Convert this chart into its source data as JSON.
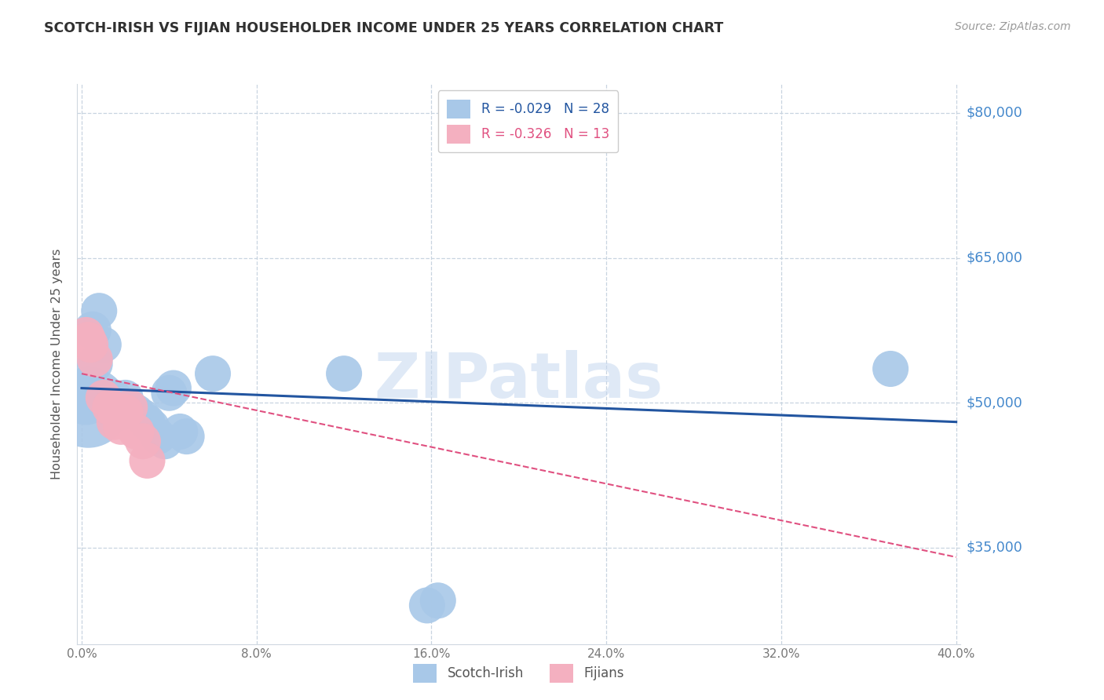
{
  "title": "SCOTCH-IRISH VS FIJIAN HOUSEHOLDER INCOME UNDER 25 YEARS CORRELATION CHART",
  "source": "Source: ZipAtlas.com",
  "ylabel": "Householder Income Under 25 years",
  "watermark": "ZIPatlas",
  "legend_bottom": [
    "Scotch-Irish",
    "Fijians"
  ],
  "scotch_irish": {
    "label": "Scotch-Irish",
    "R": -0.029,
    "N": 28,
    "color": "#a8c8e8",
    "line_color": "#2255a0",
    "points": [
      [
        0.001,
        51500,
        1400
      ],
      [
        0.002,
        50500,
        2500
      ],
      [
        0.003,
        49500,
        5500
      ],
      [
        0.005,
        57500,
        1200
      ],
      [
        0.006,
        54000,
        1100
      ],
      [
        0.008,
        59500,
        1100
      ],
      [
        0.01,
        56000,
        1100
      ],
      [
        0.012,
        49500,
        1100
      ],
      [
        0.013,
        50000,
        1100
      ],
      [
        0.015,
        50500,
        1100
      ],
      [
        0.018,
        49000,
        1100
      ],
      [
        0.02,
        50500,
        1100
      ],
      [
        0.022,
        49500,
        1100
      ],
      [
        0.025,
        49000,
        1100
      ],
      [
        0.028,
        48500,
        1100
      ],
      [
        0.03,
        48000,
        1100
      ],
      [
        0.032,
        47500,
        1100
      ],
      [
        0.035,
        46500,
        1100
      ],
      [
        0.038,
        46000,
        1100
      ],
      [
        0.04,
        51000,
        1100
      ],
      [
        0.042,
        51500,
        1100
      ],
      [
        0.045,
        47000,
        1100
      ],
      [
        0.048,
        46500,
        1100
      ],
      [
        0.06,
        53000,
        1100
      ],
      [
        0.12,
        53000,
        1100
      ],
      [
        0.158,
        29000,
        1100
      ],
      [
        0.163,
        29500,
        1100
      ],
      [
        0.37,
        53500,
        1100
      ]
    ]
  },
  "fijians": {
    "label": "Fijians",
    "R": -0.326,
    "N": 13,
    "color": "#f4b0c0",
    "line_color": "#e05080",
    "points": [
      [
        0.002,
        57000,
        1100
      ],
      [
        0.003,
        56500,
        1100
      ],
      [
        0.004,
        56000,
        1100
      ],
      [
        0.006,
        54500,
        1100
      ],
      [
        0.01,
        50500,
        1100
      ],
      [
        0.013,
        49500,
        1100
      ],
      [
        0.015,
        48000,
        1100
      ],
      [
        0.018,
        47500,
        1100
      ],
      [
        0.02,
        49000,
        1100
      ],
      [
        0.022,
        49500,
        1100
      ],
      [
        0.025,
        47000,
        1100
      ],
      [
        0.028,
        46000,
        1100
      ],
      [
        0.03,
        44000,
        1100
      ]
    ]
  },
  "si_line": [
    [
      0.0,
      51500
    ],
    [
      0.4,
      48000
    ]
  ],
  "fj_line": [
    [
      0.0,
      53000
    ],
    [
      0.4,
      34000
    ]
  ],
  "xlim": [
    -0.002,
    0.402
  ],
  "ylim": [
    25000,
    83000
  ],
  "yticks": [
    35000,
    50000,
    65000,
    80000
  ],
  "ytick_labels": [
    "$35,000",
    "$50,000",
    "$65,000",
    "$80,000"
  ],
  "xticks": [
    0.0,
    0.08,
    0.16,
    0.24,
    0.32,
    0.4
  ],
  "xtick_labels": [
    "0.0%",
    "8.0%",
    "16.0%",
    "24.0%",
    "32.0%",
    "40.0%"
  ],
  "grid_color": "#c8d4e0",
  "background_color": "#ffffff",
  "title_color": "#303030",
  "source_color": "#999999",
  "right_label_color": "#4488cc"
}
